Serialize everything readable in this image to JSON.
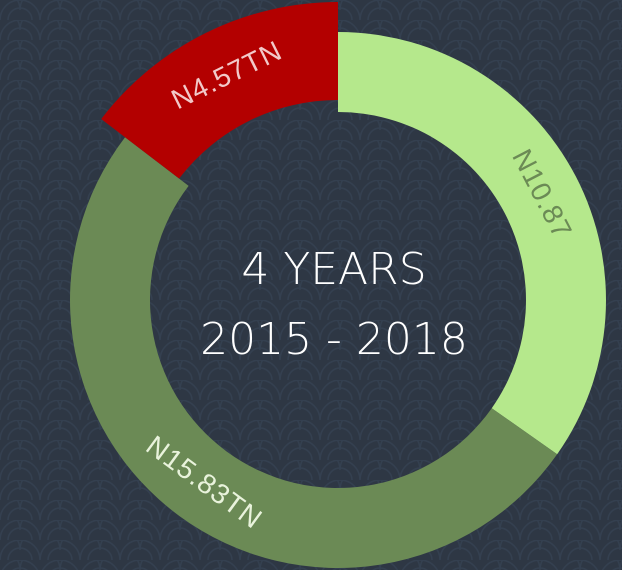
{
  "chart_data": {
    "type": "donut",
    "center_text": [
      "4 YEARS",
      "2015 - 2018"
    ],
    "values": [
      10.87,
      15.83,
      4.57
    ],
    "value_labels": [
      "N10.87",
      "N15.83TN",
      "N4.57TN"
    ],
    "colors": [
      "#b5e88c",
      "#6b8a55",
      "#b30000"
    ],
    "label_colors": [
      "#6b8a55",
      "#e9f3dc",
      "#f2c9c9"
    ]
  }
}
